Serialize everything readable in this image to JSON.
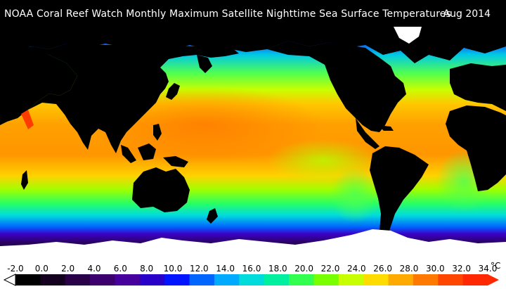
{
  "header": {
    "title": "NOAA Coral Reef Watch Monthly Maximum Satellite Nighttime Sea Surface Temperatures",
    "date": "Aug 2014"
  },
  "legend": {
    "unit": "°C",
    "min": -2.0,
    "max": 34.0,
    "tick_labels": [
      "-2.0",
      "0.0",
      "2.0",
      "4.0",
      "6.0",
      "8.0",
      "10.0",
      "12.0",
      "14.0",
      "16.0",
      "18.0",
      "20.0",
      "22.0",
      "24.0",
      "26.0",
      "28.0",
      "30.0",
      "32.0",
      "34.0"
    ],
    "colors": [
      "#000000",
      "#14001e",
      "#2a0046",
      "#3c006e",
      "#46009b",
      "#2800c8",
      "#0014ff",
      "#0064ff",
      "#00aaff",
      "#00dcdc",
      "#00f0a0",
      "#32ff50",
      "#78ff00",
      "#c8ff00",
      "#ffdc00",
      "#ffaa00",
      "#ff7800",
      "#ff4600",
      "#ff2800"
    ]
  },
  "map": {
    "land_color": "#000000",
    "ice_color": "#ffffff",
    "sst_color_scale": "blue-green-yellow-orange-red"
  }
}
